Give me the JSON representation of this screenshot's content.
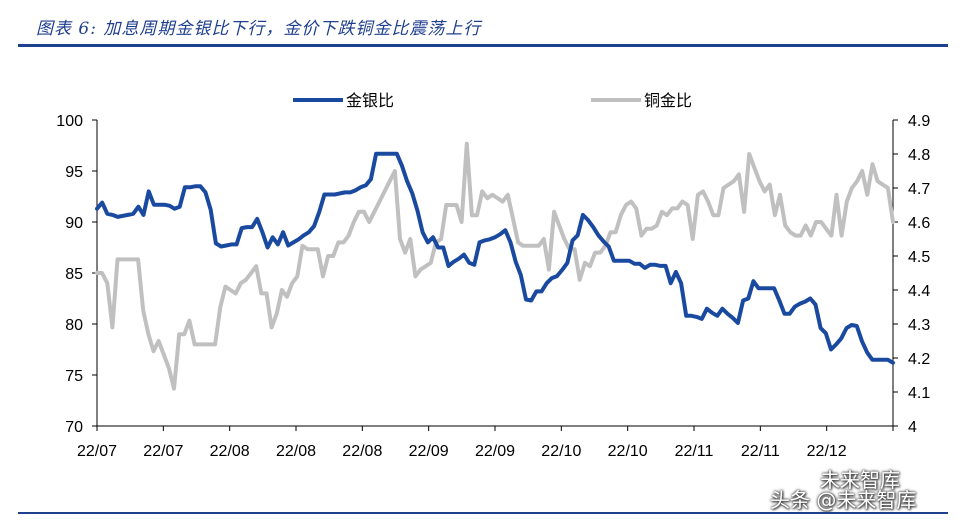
{
  "title": "图表 6:  加息周期金银比下行，金价下跌铜金比震荡上行",
  "watermark": {
    "top": "未来智库",
    "bottom": "头条 @未来智库"
  },
  "chart_data": {
    "type": "line",
    "x_tick_labels": [
      "22/07",
      "22/07",
      "22/08",
      "22/08",
      "22/08",
      "22/09",
      "22/09",
      "22/10",
      "22/10",
      "22/11",
      "22/11",
      "22/12"
    ],
    "left_axis": {
      "ylim": [
        70,
        100
      ],
      "ticks": [
        70,
        75,
        80,
        85,
        90,
        95,
        100
      ]
    },
    "right_axis": {
      "ylim": [
        4.0,
        4.9
      ],
      "ticks": [
        "4",
        "4.1",
        "4.2",
        "4.3",
        "4.4",
        "4.5",
        "4.6",
        "4.7",
        "4.8",
        "4.9"
      ]
    },
    "grid": false,
    "legend_position": "top",
    "series": [
      {
        "name": "金银比",
        "axis": "left",
        "color": "#1a4aa0",
        "values": [
          91.3,
          91.9,
          90.8,
          90.7,
          90.5,
          90.6,
          90.7,
          90.8,
          91.5,
          90.7,
          93.0,
          91.7,
          91.7,
          91.7,
          91.6,
          91.3,
          91.5,
          93.4,
          93.4,
          93.5,
          93.5,
          92.9,
          91.2,
          87.9,
          87.6,
          87.7,
          87.8,
          87.8,
          89.4,
          89.5,
          89.5,
          90.3,
          89.0,
          87.5,
          88.5,
          87.8,
          89.0,
          87.7,
          88.0,
          88.3,
          88.7,
          89.0,
          89.6,
          91.0,
          92.7,
          92.7,
          92.7,
          92.8,
          92.9,
          92.9,
          93.1,
          93.4,
          93.6,
          94.2,
          96.7,
          96.7,
          96.7,
          96.7,
          96.7,
          95.5,
          94.0,
          92.8,
          91.1,
          89.0,
          88.0,
          88.5,
          87.5,
          87.5,
          85.7,
          86.1,
          86.4,
          86.8,
          86.0,
          85.8,
          88.0,
          88.2,
          88.3,
          88.5,
          88.8,
          89.2,
          88.0,
          86.1,
          84.8,
          82.4,
          82.3,
          83.2,
          83.2,
          84.0,
          84.5,
          84.7,
          85.3,
          86.0,
          88.2,
          88.7,
          90.7,
          90.2,
          89.5,
          88.7,
          88.1,
          87.6,
          86.2,
          86.2,
          86.2,
          86.2,
          85.9,
          85.9,
          85.5,
          85.8,
          85.8,
          85.7,
          85.7,
          84.0,
          85.1,
          84.0,
          80.8,
          80.8,
          80.7,
          80.5,
          81.5,
          81.1,
          80.8,
          81.5,
          81.0,
          80.6,
          80.1,
          82.3,
          82.5,
          84.2,
          83.5,
          83.5,
          83.5,
          83.5,
          82.3,
          81.0,
          81.0,
          81.7,
          82.0,
          82.2,
          82.5,
          81.9,
          79.6,
          79.1,
          77.5,
          78.0,
          78.6,
          79.6,
          79.9,
          79.8,
          78.3,
          77.2,
          76.5,
          76.5,
          76.5,
          76.5,
          76.2
        ]
      },
      {
        "name": "铜金比",
        "axis": "right",
        "color": "#c0c0c0",
        "values": [
          4.45,
          4.45,
          4.42,
          4.29,
          4.49,
          4.49,
          4.49,
          4.49,
          4.49,
          4.34,
          4.27,
          4.22,
          4.25,
          4.21,
          4.17,
          4.11,
          4.27,
          4.27,
          4.31,
          4.24,
          4.24,
          4.24,
          4.24,
          4.24,
          4.35,
          4.41,
          4.4,
          4.39,
          4.42,
          4.43,
          4.45,
          4.47,
          4.39,
          4.39,
          4.29,
          4.33,
          4.4,
          4.38,
          4.42,
          4.44,
          4.53,
          4.52,
          4.52,
          4.52,
          4.44,
          4.5,
          4.5,
          4.54,
          4.54,
          4.56,
          4.6,
          4.63,
          4.63,
          4.6,
          4.63,
          4.66,
          4.69,
          4.72,
          4.75,
          4.55,
          4.51,
          4.55,
          4.44,
          4.46,
          4.47,
          4.48,
          4.54,
          4.55,
          4.65,
          4.65,
          4.65,
          4.6,
          4.83,
          4.62,
          4.62,
          4.69,
          4.67,
          4.68,
          4.67,
          4.66,
          4.68,
          4.61,
          4.54,
          4.53,
          4.53,
          4.53,
          4.53,
          4.55,
          4.46,
          4.63,
          4.59,
          4.55,
          4.52,
          4.52,
          4.43,
          4.48,
          4.47,
          4.51,
          4.51,
          4.53,
          4.57,
          4.57,
          4.62,
          4.65,
          4.66,
          4.64,
          4.56,
          4.58,
          4.58,
          4.59,
          4.63,
          4.62,
          4.64,
          4.64,
          4.66,
          4.65,
          4.55,
          4.68,
          4.69,
          4.66,
          4.62,
          4.62,
          4.7,
          4.71,
          4.72,
          4.74,
          4.63,
          4.8,
          4.76,
          4.72,
          4.69,
          4.71,
          4.62,
          4.68,
          4.59,
          4.57,
          4.56,
          4.56,
          4.59,
          4.56,
          4.6,
          4.6,
          4.58,
          4.56,
          4.68,
          4.56,
          4.66,
          4.7,
          4.72,
          4.75,
          4.68,
          4.77,
          4.72,
          4.71,
          4.7,
          4.6
        ]
      }
    ]
  }
}
